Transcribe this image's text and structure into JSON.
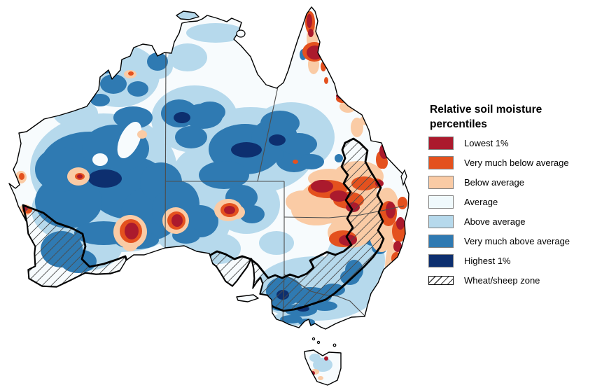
{
  "page": {
    "background": "#ffffff"
  },
  "map": {
    "name": "Australia relative soil moisture percentile map",
    "type": "choropleth-map",
    "region": "Australia",
    "overlays": [
      "state borders",
      "coastline",
      "wheat/sheep zone hatching"
    ]
  },
  "palette": {
    "low1": "#AB1A2D",
    "vmb": "#E4511E",
    "ba": "#FACBA5",
    "avg": "#F0F9FC",
    "aa": "#B6D9EC",
    "vma": "#2F7AB2",
    "hi1": "#0D2F6F",
    "land": "#F7FBFD",
    "sea": "#FFFFFF"
  },
  "legend": {
    "title": "Relative soil moisture percentiles",
    "items": [
      {
        "label": "Lowest 1%",
        "swatch": "low1"
      },
      {
        "label": "Very much below average",
        "swatch": "vmb"
      },
      {
        "label": "Below average",
        "swatch": "ba"
      },
      {
        "label": "Average",
        "swatch": "avg"
      },
      {
        "label": "Above average",
        "swatch": "aa"
      },
      {
        "label": "Very much above average",
        "swatch": "vma"
      },
      {
        "label": "Highest 1%",
        "swatch": "hi1"
      },
      {
        "label": "Wheat/sheep zone",
        "swatch": "hatch"
      }
    ]
  }
}
